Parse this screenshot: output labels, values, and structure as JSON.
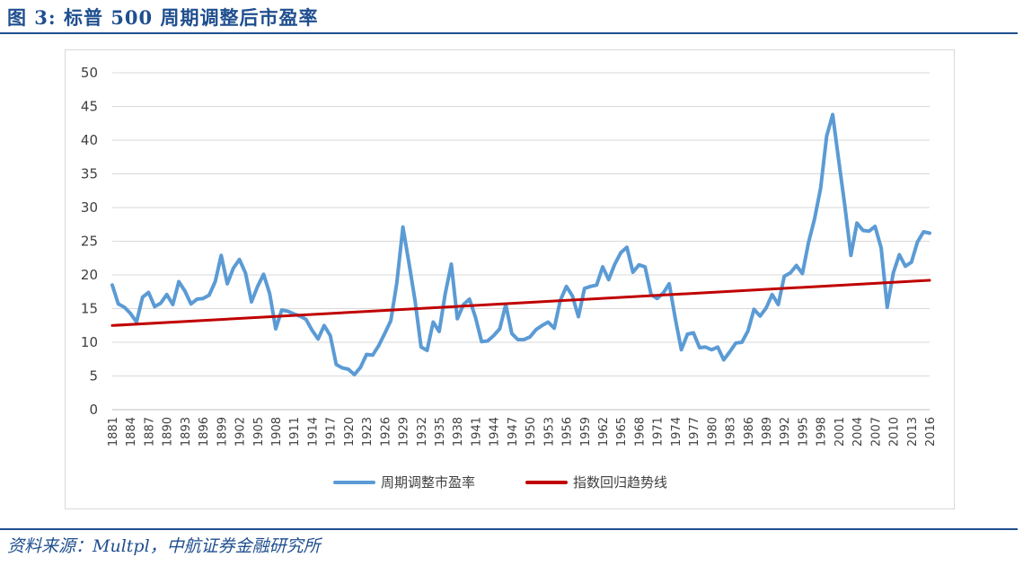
{
  "header": {
    "title": "图 3:  标普 500 周期调整后市盈率"
  },
  "footer": {
    "source": "资料来源：Multpl，中航证券金融研究所"
  },
  "colors": {
    "cape": "#5b9bd5",
    "trend": "#c00000",
    "grid": "#d9d9d9",
    "brand": "#1f4f8f"
  },
  "chart_data": {
    "type": "line",
    "title": "",
    "xlabel": "",
    "ylabel": "",
    "ylim": [
      0,
      50
    ],
    "yticks": [
      0,
      5,
      10,
      15,
      20,
      25,
      30,
      35,
      40,
      45,
      50
    ],
    "xlim": [
      1881,
      2016
    ],
    "xticks": [
      1881,
      1884,
      1887,
      1890,
      1893,
      1896,
      1899,
      1902,
      1905,
      1908,
      1911,
      1914,
      1917,
      1920,
      1923,
      1926,
      1929,
      1932,
      1935,
      1938,
      1941,
      1944,
      1947,
      1950,
      1953,
      1956,
      1959,
      1962,
      1965,
      1968,
      1971,
      1974,
      1977,
      1980,
      1983,
      1986,
      1989,
      1992,
      1995,
      1998,
      2001,
      2004,
      2007,
      2010,
      2013,
      2016
    ],
    "legend_position": "bottom",
    "series": [
      {
        "name": "周期调整市盈率",
        "x": [
          1881,
          1882,
          1883,
          1884,
          1885,
          1886,
          1887,
          1888,
          1889,
          1890,
          1891,
          1892,
          1893,
          1894,
          1895,
          1896,
          1897,
          1898,
          1899,
          1900,
          1901,
          1902,
          1903,
          1904,
          1905,
          1906,
          1907,
          1908,
          1909,
          1910,
          1911,
          1912,
          1913,
          1914,
          1915,
          1916,
          1917,
          1918,
          1919,
          1920,
          1921,
          1922,
          1923,
          1924,
          1925,
          1926,
          1927,
          1928,
          1929,
          1930,
          1931,
          1932,
          1933,
          1934,
          1935,
          1936,
          1937,
          1938,
          1939,
          1940,
          1941,
          1942,
          1943,
          1944,
          1945,
          1946,
          1947,
          1948,
          1949,
          1950,
          1951,
          1952,
          1953,
          1954,
          1955,
          1956,
          1957,
          1958,
          1959,
          1960,
          1961,
          1962,
          1963,
          1964,
          1965,
          1966,
          1967,
          1968,
          1969,
          1970,
          1971,
          1972,
          1973,
          1974,
          1975,
          1976,
          1977,
          1978,
          1979,
          1980,
          1981,
          1982,
          1983,
          1984,
          1985,
          1986,
          1987,
          1988,
          1989,
          1990,
          1991,
          1992,
          1993,
          1994,
          1995,
          1996,
          1997,
          1998,
          1999,
          2000,
          2001,
          2002,
          2003,
          2004,
          2005,
          2006,
          2007,
          2008,
          2009,
          2010,
          2011,
          2012,
          2013,
          2014,
          2015,
          2016
        ],
        "values": [
          18.5,
          15.7,
          15.2,
          14.3,
          13.0,
          16.7,
          17.4,
          15.3,
          15.8,
          17.1,
          15.6,
          19.0,
          17.6,
          15.7,
          16.4,
          16.5,
          17.0,
          19.0,
          22.9,
          18.7,
          21.0,
          22.3,
          20.3,
          16.0,
          18.3,
          20.1,
          17.2,
          12.0,
          14.8,
          14.6,
          14.2,
          13.9,
          13.4,
          11.8,
          10.5,
          12.5,
          11.0,
          6.7,
          6.2,
          6.0,
          5.2,
          6.3,
          8.2,
          8.1,
          9.5,
          11.3,
          13.2,
          18.8,
          27.1,
          21.8,
          16.3,
          9.3,
          8.8,
          13.0,
          11.6,
          17.2,
          21.6,
          13.5,
          15.6,
          16.4,
          13.7,
          10.1,
          10.2,
          11.0,
          12.0,
          15.6,
          11.3,
          10.4,
          10.4,
          10.8,
          11.9,
          12.5,
          13.0,
          12.1,
          16.2,
          18.3,
          16.9,
          13.8,
          18.0,
          18.3,
          18.5,
          21.2,
          19.3,
          21.6,
          23.3,
          24.1,
          20.4,
          21.5,
          21.2,
          17.1,
          16.5,
          17.3,
          18.7,
          13.5,
          8.9,
          11.2,
          11.4,
          9.2,
          9.3,
          8.9,
          9.3,
          7.4,
          8.6,
          9.9,
          10.0,
          11.7,
          14.9,
          13.9,
          15.1,
          17.1,
          15.6,
          19.8,
          20.3,
          21.4,
          20.2,
          24.8,
          28.3,
          32.9,
          40.6,
          43.8,
          36.9,
          30.3,
          22.9,
          27.7,
          26.6,
          26.5,
          27.2,
          24.0,
          15.2,
          20.3,
          23.0,
          21.3,
          21.9,
          24.9,
          26.4,
          26.2
        ]
      },
      {
        "name": "指数回归趋势线",
        "x": [
          1881,
          2016
        ],
        "values": [
          12.5,
          19.2
        ]
      }
    ]
  }
}
